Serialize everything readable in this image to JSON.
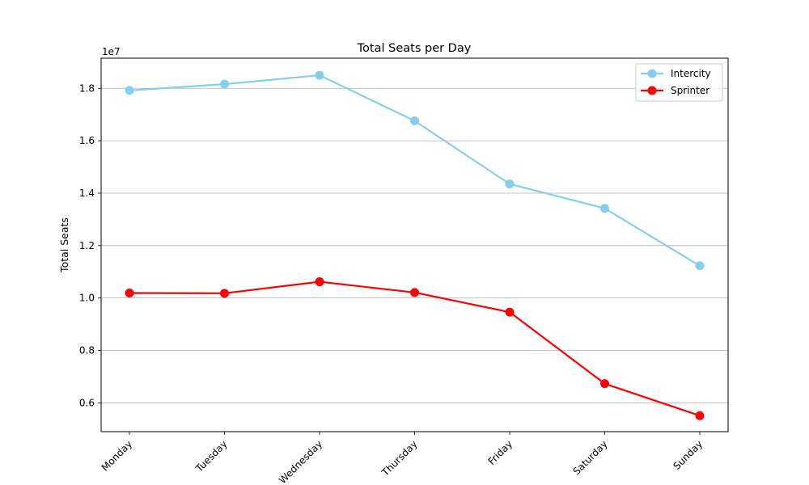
{
  "chart_data": {
    "type": "line",
    "title": "Total Seats per Day",
    "xlabel": "",
    "ylabel": "Total Seats",
    "offset_text": "1e7",
    "categories": [
      "Monday",
      "Tuesday",
      "Wednesday",
      "Thursday",
      "Friday",
      "Saturday",
      "Sunday"
    ],
    "ylim": [
      0.49,
      1.915
    ],
    "yticks": [
      0.6,
      0.8,
      1.0,
      1.2,
      1.4,
      1.6,
      1.8
    ],
    "ytick_labels": [
      "0.6",
      "0.8",
      "1.0",
      "1.2",
      "1.4",
      "1.6",
      "1.8"
    ],
    "grid": "y",
    "legend": "top-right",
    "series": [
      {
        "name": "Intercity",
        "color": "#87ceeb",
        "values": [
          1.792,
          1.816,
          1.85,
          1.676,
          1.435,
          1.342,
          1.123
        ]
      },
      {
        "name": "Sprinter",
        "color": "#ff0000",
        "values": [
          1.019,
          1.018,
          1.062,
          1.021,
          0.946,
          0.673,
          0.551
        ]
      }
    ]
  }
}
